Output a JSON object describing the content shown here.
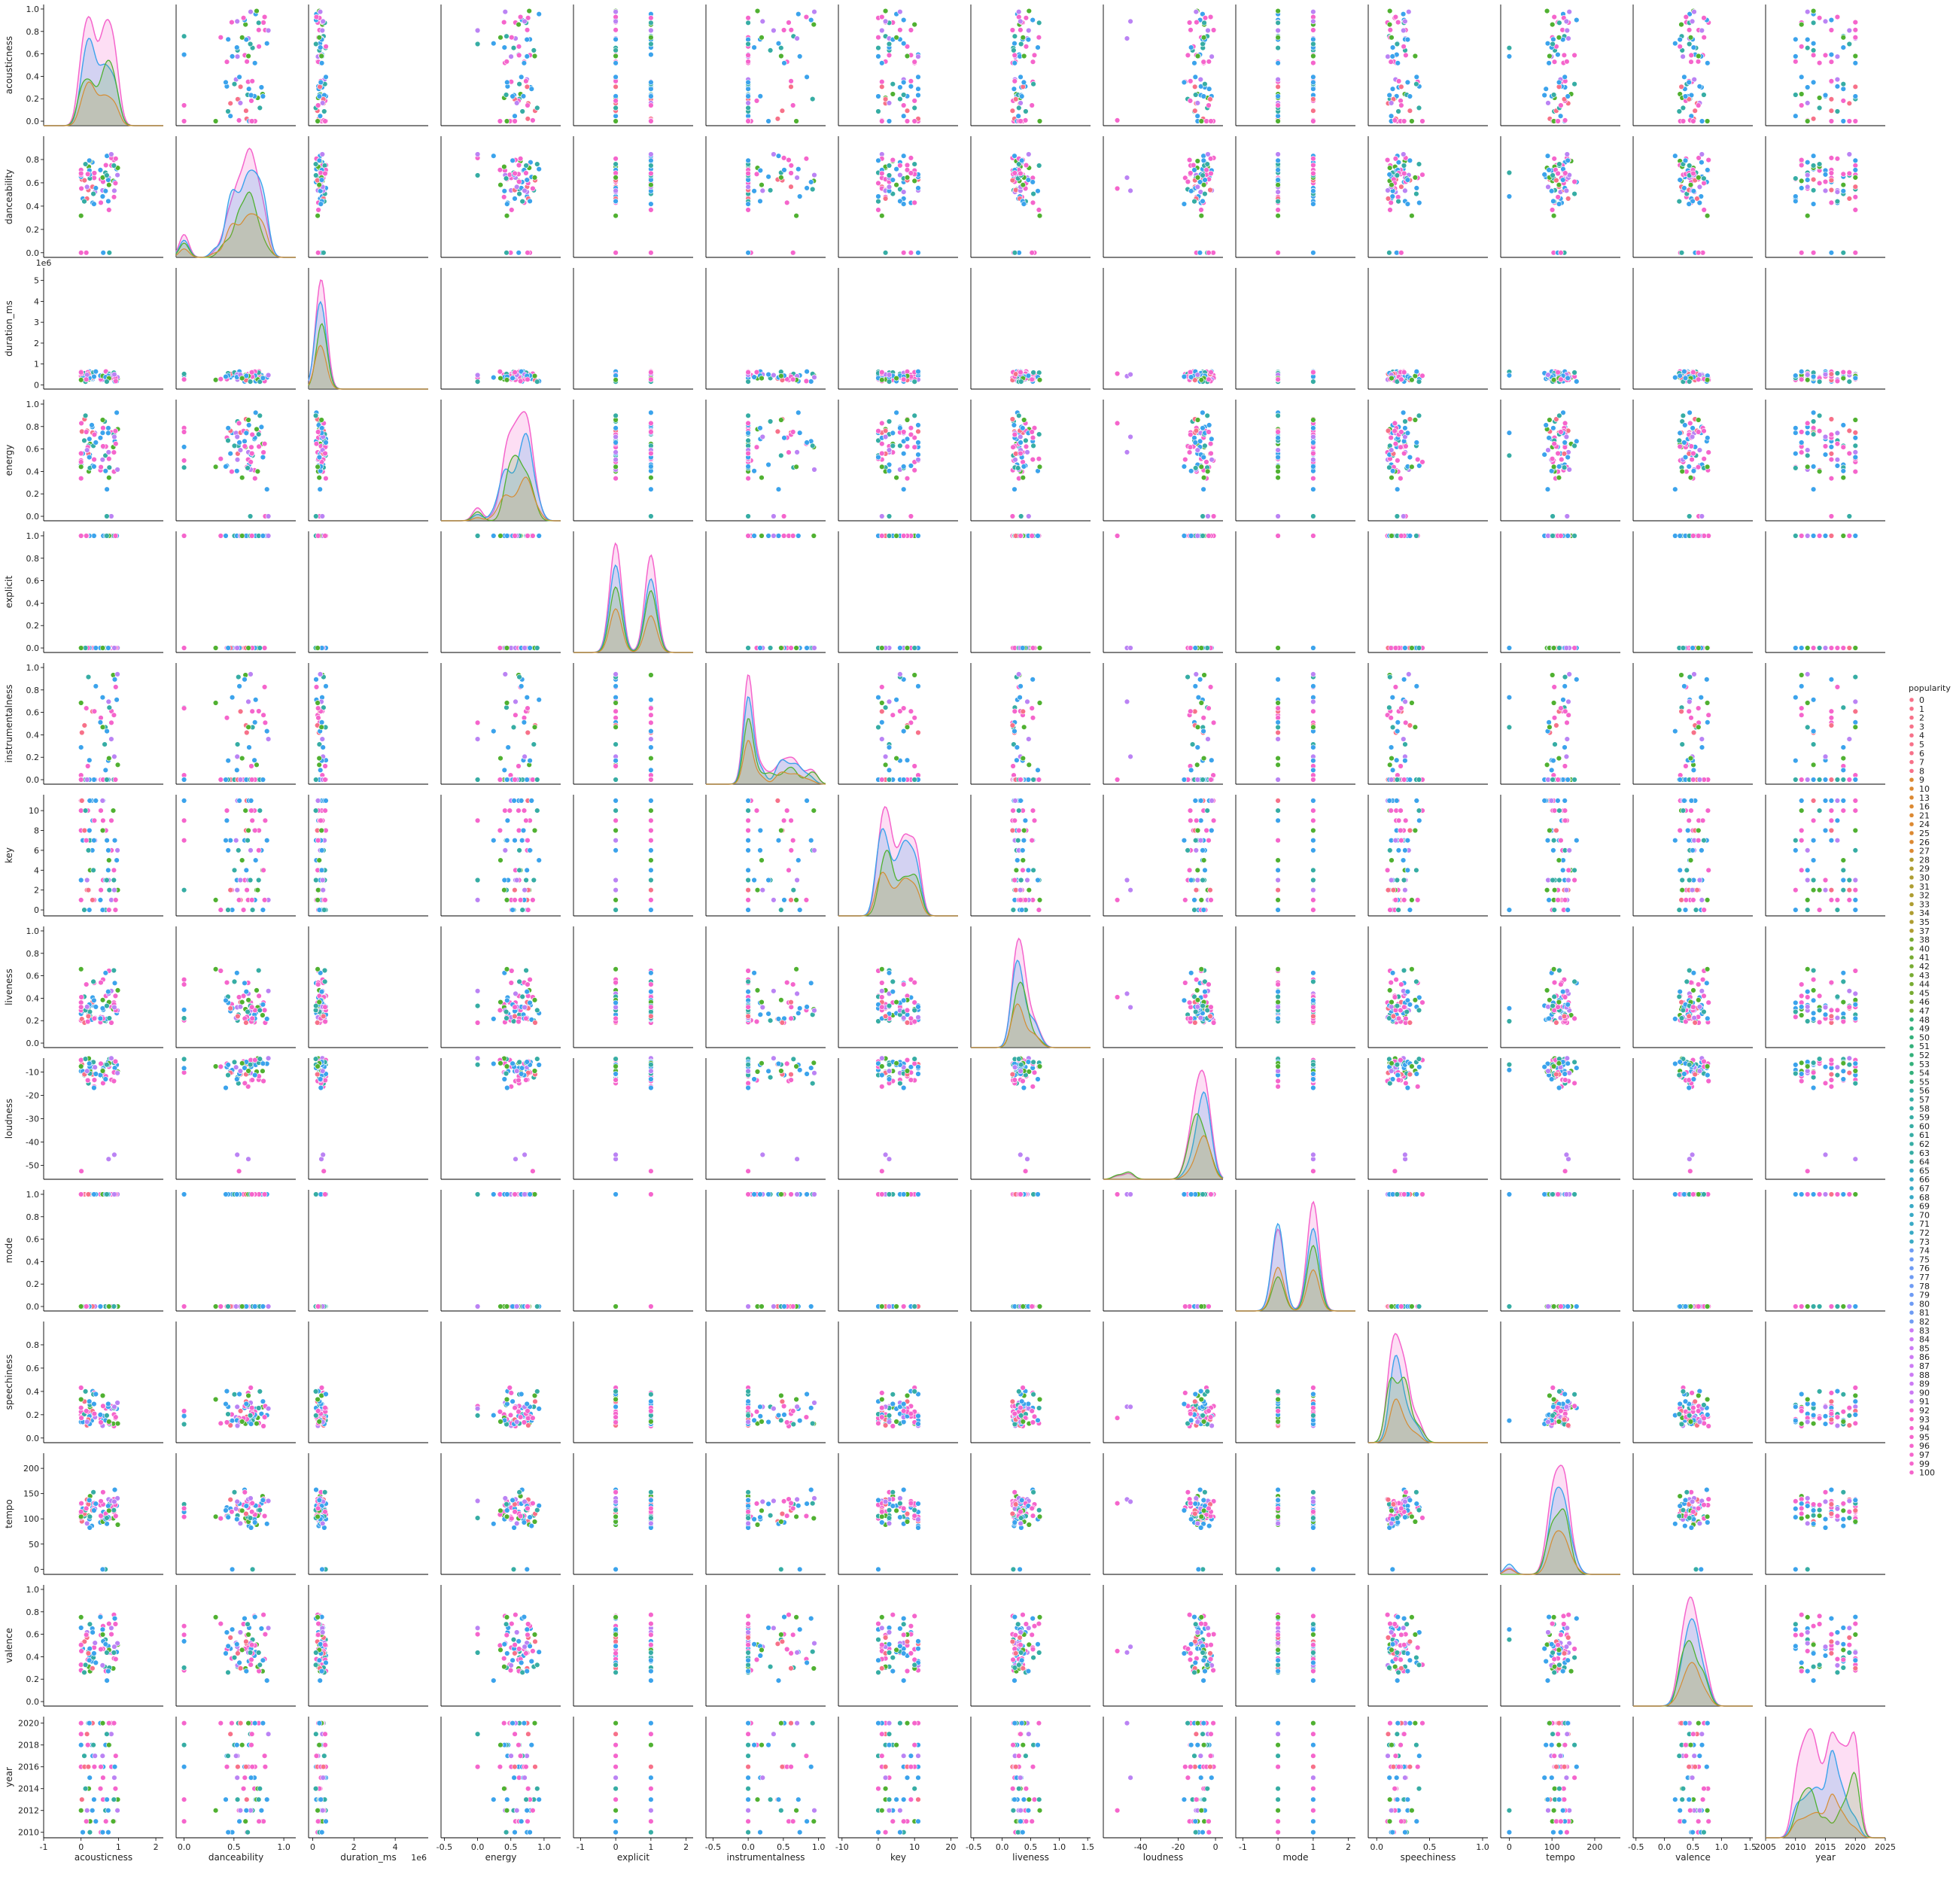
{
  "chart_data": {
    "type": "scatter",
    "title": "",
    "matrix_kind": "pairplot",
    "diagonal_kind": "kde",
    "grid": false,
    "variables": [
      {
        "name": "acousticness",
        "xlim": [
          -1,
          2.2
        ],
        "xticks": [
          "-1",
          "0",
          "1",
          "2"
        ],
        "xtick_values": [
          -1,
          0,
          1,
          2
        ],
        "ylim": [
          -0.04,
          1.04
        ],
        "yticks": [
          "0.0",
          "0.2",
          "0.4",
          "0.6",
          "0.8",
          "1.0"
        ],
        "ytick_values": [
          0,
          0.2,
          0.4,
          0.6,
          0.8,
          1.0
        ],
        "x_offset_text": "",
        "y_offset_text": ""
      },
      {
        "name": "danceability",
        "xlim": [
          -0.08,
          1.12
        ],
        "xticks": [
          "0.0",
          "0.5",
          "1.0"
        ],
        "xtick_values": [
          0,
          0.5,
          1.0
        ],
        "ylim": [
          -0.04,
          1.0
        ],
        "yticks": [
          "0.0",
          "0.2",
          "0.4",
          "0.6",
          "0.8"
        ],
        "ytick_values": [
          0,
          0.2,
          0.4,
          0.6,
          0.8
        ],
        "x_offset_text": "",
        "y_offset_text": ""
      },
      {
        "name": "duration_ms",
        "xlim": [
          -200000,
          5600000
        ],
        "xticks": [
          "0",
          "2",
          "4"
        ],
        "xtick_values": [
          0,
          2000000,
          4000000
        ],
        "ylim": [
          -200000,
          5600000
        ],
        "yticks": [
          "0",
          "1",
          "2",
          "3",
          "4",
          "5"
        ],
        "ytick_values": [
          0,
          1000000,
          2000000,
          3000000,
          4000000,
          5000000
        ],
        "x_offset_text": "1e6",
        "y_offset_text": "1e6"
      },
      {
        "name": "energy",
        "xlim": [
          -0.55,
          1.25
        ],
        "xticks": [
          "-0.5",
          "0.0",
          "0.5",
          "1.0"
        ],
        "xtick_values": [
          -0.5,
          0,
          0.5,
          1.0
        ],
        "ylim": [
          -0.04,
          1.04
        ],
        "yticks": [
          "0.0",
          "0.2",
          "0.4",
          "0.6",
          "0.8",
          "1.0"
        ],
        "ytick_values": [
          0,
          0.2,
          0.4,
          0.6,
          0.8,
          1.0
        ],
        "x_offset_text": "",
        "y_offset_text": ""
      },
      {
        "name": "explicit",
        "xlim": [
          -1.2,
          2.2
        ],
        "xticks": [
          "-1",
          "0",
          "1",
          "2"
        ],
        "xtick_values": [
          -1,
          0,
          1,
          2
        ],
        "ylim": [
          -0.04,
          1.04
        ],
        "yticks": [
          "0.0",
          "0.2",
          "0.4",
          "0.6",
          "0.8",
          "1.0"
        ],
        "ytick_values": [
          0,
          0.2,
          0.4,
          0.6,
          0.8,
          1.0
        ],
        "x_offset_text": "",
        "y_offset_text": ""
      },
      {
        "name": "instrumentalness",
        "xlim": [
          -0.6,
          1.1
        ],
        "xticks": [
          "-0.5",
          "0.0",
          "0.5",
          "1.0"
        ],
        "xtick_values": [
          -0.5,
          0,
          0.5,
          1.0
        ],
        "ylim": [
          -0.04,
          1.04
        ],
        "yticks": [
          "0.0",
          "0.2",
          "0.4",
          "0.6",
          "0.8",
          "1.0"
        ],
        "ytick_values": [
          0,
          0.2,
          0.4,
          0.6,
          0.8,
          1.0
        ],
        "x_offset_text": "",
        "y_offset_text": ""
      },
      {
        "name": "key",
        "xlim": [
          -11,
          22
        ],
        "xticks": [
          "-10",
          "0",
          "10",
          "20"
        ],
        "xtick_values": [
          -10,
          0,
          10,
          20
        ],
        "ylim": [
          -0.6,
          11.6
        ],
        "yticks": [
          "0",
          "2",
          "4",
          "6",
          "8",
          "10"
        ],
        "ytick_values": [
          0,
          2,
          4,
          6,
          8,
          10
        ],
        "x_offset_text": "",
        "y_offset_text": ""
      },
      {
        "name": "liveness",
        "xlim": [
          -0.55,
          1.55
        ],
        "xticks": [
          "-0.5",
          "0.0",
          "0.5",
          "1.0",
          "1.5"
        ],
        "xtick_values": [
          -0.5,
          0,
          0.5,
          1.0,
          1.5
        ],
        "ylim": [
          -0.04,
          1.04
        ],
        "yticks": [
          "0.0",
          "0.2",
          "0.4",
          "0.6",
          "0.8",
          "1.0"
        ],
        "ytick_values": [
          0,
          0.2,
          0.4,
          0.6,
          0.8,
          1.0
        ],
        "x_offset_text": "",
        "y_offset_text": ""
      },
      {
        "name": "loudness",
        "xlim": [
          -60,
          4
        ],
        "xticks": [
          "-40",
          "-20",
          "0"
        ],
        "xtick_values": [
          -40,
          -20,
          0
        ],
        "ylim": [
          -56,
          -4
        ],
        "yticks": [
          "-50",
          "-40",
          "-30",
          "-20",
          "-10"
        ],
        "ytick_values": [
          -50,
          -40,
          -30,
          -20,
          -10
        ],
        "x_offset_text": "",
        "y_offset_text": ""
      },
      {
        "name": "mode",
        "xlim": [
          -1.2,
          2.2
        ],
        "xticks": [
          "-1",
          "0",
          "1",
          "2"
        ],
        "xtick_values": [
          -1,
          0,
          1,
          2
        ],
        "ylim": [
          -0.04,
          1.04
        ],
        "yticks": [
          "0.0",
          "0.2",
          "0.4",
          "0.6",
          "0.8",
          "1.0"
        ],
        "ytick_values": [
          0,
          0.2,
          0.4,
          0.6,
          0.8,
          1.0
        ],
        "x_offset_text": "",
        "y_offset_text": ""
      },
      {
        "name": "speechiness",
        "xlim": [
          -0.08,
          1.05
        ],
        "xticks": [
          "0.0",
          "0.5",
          "1.0"
        ],
        "xtick_values": [
          0,
          0.5,
          1.0
        ],
        "ylim": [
          -0.04,
          1.0
        ],
        "yticks": [
          "0.0",
          "0.2",
          "0.4",
          "0.6",
          "0.8"
        ],
        "ytick_values": [
          0,
          0.2,
          0.4,
          0.6,
          0.8
        ],
        "x_offset_text": "",
        "y_offset_text": ""
      },
      {
        "name": "tempo",
        "xlim": [
          -20,
          260
        ],
        "xticks": [
          "0",
          "100",
          "200"
        ],
        "xtick_values": [
          0,
          100,
          200
        ],
        "ylim": [
          -10,
          230
        ],
        "yticks": [
          "0",
          "50",
          "100",
          "150",
          "200"
        ],
        "ytick_values": [
          0,
          50,
          100,
          150,
          200
        ],
        "x_offset_text": "",
        "y_offset_text": ""
      },
      {
        "name": "valence",
        "xlim": [
          -0.55,
          1.55
        ],
        "xticks": [
          "-0.5",
          "0.0",
          "0.5",
          "1.0",
          "1.5"
        ],
        "xtick_values": [
          -0.5,
          0,
          0.5,
          1.0,
          1.5
        ],
        "ylim": [
          -0.04,
          1.04
        ],
        "yticks": [
          "0.0",
          "0.2",
          "0.4",
          "0.6",
          "0.8",
          "1.0"
        ],
        "ytick_values": [
          0,
          0.2,
          0.4,
          0.6,
          0.8,
          1.0
        ],
        "x_offset_text": "",
        "y_offset_text": ""
      },
      {
        "name": "year",
        "xlim": [
          2005,
          2025
        ],
        "xticks": [
          "2005",
          "2010",
          "2015",
          "2020",
          "2025"
        ],
        "xtick_values": [
          2005,
          2010,
          2015,
          2020,
          2025
        ],
        "ylim": [
          2009.5,
          2020.6
        ],
        "yticks": [
          "2010",
          "2012",
          "2014",
          "2016",
          "2018",
          "2020"
        ],
        "ytick_values": [
          2010,
          2012,
          2014,
          2016,
          2018,
          2020
        ],
        "x_offset_text": "",
        "y_offset_text": ""
      }
    ],
    "legend": {
      "title": "popularity",
      "placement": "right",
      "entries": [
        "0",
        "1",
        "2",
        "3",
        "4",
        "5",
        "6",
        "7",
        "8",
        "9",
        "10",
        "13",
        "16",
        "21",
        "24",
        "25",
        "26",
        "27",
        "28",
        "29",
        "30",
        "31",
        "32",
        "33",
        "34",
        "35",
        "37",
        "38",
        "40",
        "41",
        "42",
        "43",
        "44",
        "45",
        "46",
        "47",
        "48",
        "49",
        "50",
        "51",
        "52",
        "53",
        "54",
        "55",
        "56",
        "57",
        "58",
        "59",
        "60",
        "61",
        "62",
        "63",
        "64",
        "65",
        "66",
        "67",
        "68",
        "69",
        "70",
        "71",
        "72",
        "73",
        "74",
        "75",
        "76",
        "77",
        "78",
        "79",
        "80",
        "81",
        "82",
        "83",
        "84",
        "85",
        "86",
        "87",
        "88",
        "89",
        "90",
        "91",
        "92",
        "93",
        "94",
        "95",
        "96",
        "97",
        "99",
        "100"
      ]
    },
    "palette": {
      "low": "#f77189",
      "orange": "#d58c32",
      "olive": "#a4a031",
      "green": "#50b131",
      "teal": "#36ada4",
      "blue": "#3ba3ec",
      "purple": "#bb83f4",
      "high": "#f565cc"
    },
    "note_colors": [
      "#f77189",
      "#dc8932",
      "#ae9d31",
      "#77ab31",
      "#33b07a",
      "#36ada4",
      "#38a9c5",
      "#6e9bf4",
      "#cc7af4",
      "#f565cc"
    ]
  }
}
